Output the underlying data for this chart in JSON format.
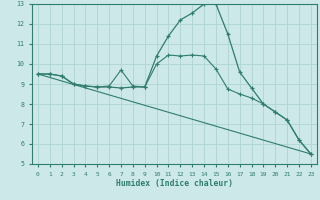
{
  "xlabel": "Humidex (Indice chaleur)",
  "ylabel": "",
  "background_color": "#cde8e8",
  "grid_color": "#aed4d4",
  "line_color": "#2e7d6e",
  "xlim": [
    -0.5,
    23.5
  ],
  "ylim": [
    5,
    13
  ],
  "yticks": [
    5,
    6,
    7,
    8,
    9,
    10,
    11,
    12,
    13
  ],
  "xticks": [
    0,
    1,
    2,
    3,
    4,
    5,
    6,
    7,
    8,
    9,
    10,
    11,
    12,
    13,
    14,
    15,
    16,
    17,
    18,
    19,
    20,
    21,
    22,
    23
  ],
  "line1_x": [
    0,
    1,
    2,
    3,
    4,
    5,
    6,
    7,
    8,
    9,
    10,
    11,
    12,
    13,
    14,
    15,
    16,
    17,
    18,
    19,
    20,
    21,
    22,
    23
  ],
  "line1_y": [
    9.5,
    9.5,
    9.4,
    9.0,
    8.9,
    8.85,
    8.85,
    8.8,
    8.85,
    8.85,
    10.4,
    11.4,
    12.2,
    12.55,
    13.0,
    13.0,
    11.5,
    9.6,
    8.8,
    8.0,
    7.6,
    7.2,
    6.2,
    5.5
  ],
  "line2_x": [
    0,
    1,
    2,
    3,
    4,
    5,
    6,
    7,
    8,
    9,
    10,
    11,
    12,
    13,
    14,
    15,
    16,
    17,
    18,
    19,
    20,
    21,
    22,
    23
  ],
  "line2_y": [
    9.5,
    9.5,
    9.4,
    9.0,
    8.9,
    8.85,
    8.9,
    9.7,
    8.9,
    8.85,
    10.0,
    10.45,
    10.4,
    10.45,
    10.4,
    9.75,
    8.75,
    8.5,
    8.3,
    8.0,
    7.6,
    7.2,
    6.2,
    5.5
  ],
  "line3_x": [
    0,
    23
  ],
  "line3_y": [
    9.5,
    5.5
  ]
}
